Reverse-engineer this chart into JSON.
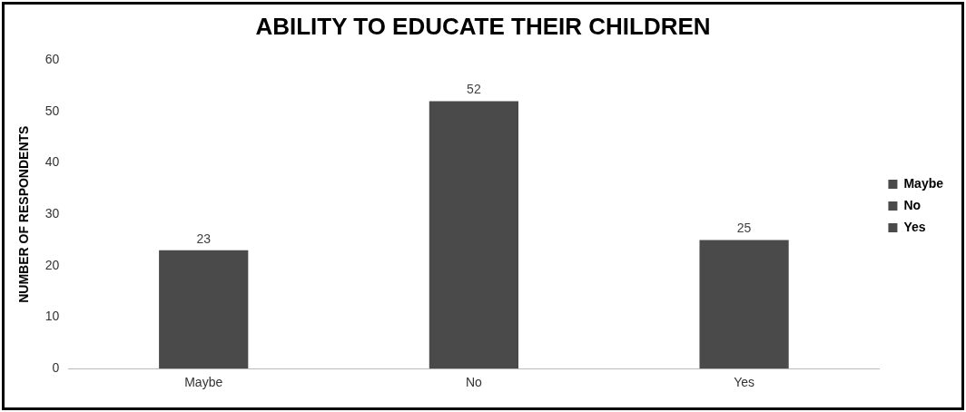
{
  "chart_data": {
    "type": "bar",
    "title": "ABILITY TO EDUCATE THEIR CHILDREN",
    "ylabel": "NUMBER OF RESPONDENTS",
    "categories": [
      "Maybe",
      "No",
      "Yes"
    ],
    "series": [
      {
        "name": "Maybe",
        "color": "#4a4a4a",
        "values": [
          23,
          null,
          null
        ]
      },
      {
        "name": "No",
        "color": "#4a4a4a",
        "values": [
          null,
          52,
          null
        ]
      },
      {
        "name": "Yes",
        "color": "#4a4a4a",
        "values": [
          null,
          null,
          25
        ]
      }
    ],
    "ylim": [
      0,
      60
    ],
    "yticks": [
      0,
      10,
      20,
      30,
      40,
      50,
      60
    ],
    "grid": false,
    "legend": "right",
    "data_labels": true
  }
}
